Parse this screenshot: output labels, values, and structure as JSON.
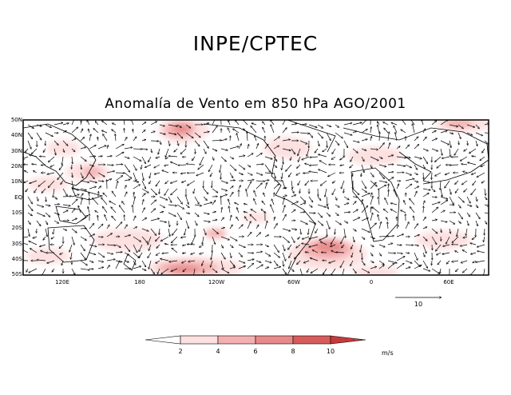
{
  "title": "INPE/CPTEC",
  "subtitle": "Anomalía de Vento em 850 hPa AGO/2001",
  "lat_labels": [
    "50N",
    "40N",
    "30N",
    "20N",
    "10N",
    "EQ",
    "10S",
    "20S",
    "30S",
    "40S",
    "50S"
  ],
  "lon_labels": [
    "120E",
    "180",
    "120W",
    "60W",
    "0",
    "60E"
  ],
  "reference_vector": {
    "label": "10"
  },
  "colorbar": {
    "ticks": [
      "2",
      "4",
      "6",
      "8",
      "10"
    ],
    "unit": "m/s",
    "colors": [
      "#ffffff",
      "#fde0e0",
      "#f4b0b0",
      "#e88a8a",
      "#d85c5c",
      "#c83a3a"
    ]
  },
  "colors": {
    "land_outline": "#000000",
    "vector": "#000000",
    "frame": "#000000"
  }
}
